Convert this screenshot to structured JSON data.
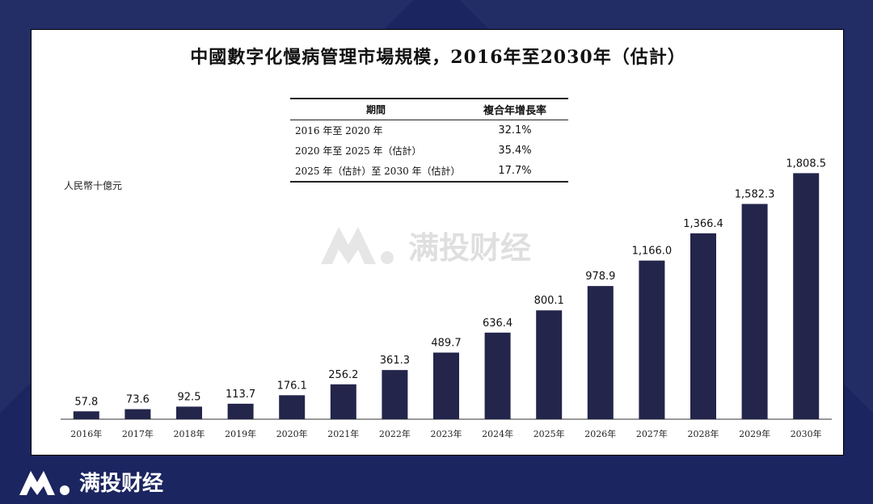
{
  "brand": {
    "name": "满投财经",
    "watermark": "满投财经"
  },
  "chart_data": {
    "type": "bar",
    "title": "中國數字化慢病管理市場規模，2016年至2030年（估計）",
    "ylabel": "人民幣十億元",
    "xlabel": "",
    "ylim": [
      0,
      1900
    ],
    "categories": [
      "2016年",
      "2017年",
      "2018年",
      "2019年",
      "2020年",
      "2021年",
      "2022年",
      "2023年",
      "2024年",
      "2025年",
      "2026年",
      "2027年",
      "2028年",
      "2029年",
      "2030年"
    ],
    "values": [
      57.8,
      73.6,
      92.5,
      113.7,
      176.1,
      256.2,
      361.3,
      489.7,
      636.4,
      800.1,
      978.9,
      1166.0,
      1366.4,
      1582.3,
      1808.5
    ],
    "value_labels": [
      "57.8",
      "73.6",
      "92.5",
      "113.7",
      "176.1",
      "256.2",
      "361.3",
      "489.7",
      "636.4",
      "800.1",
      "978.9",
      "1,166.0",
      "1,366.4",
      "1,582.3",
      "1,808.5"
    ],
    "bar_color": "#23254b",
    "cagr_table": {
      "headers": [
        "期間",
        "複合年增長率"
      ],
      "rows": [
        [
          "2016 年至 2020 年",
          "32.1%"
        ],
        [
          "2020 年至 2025 年（估計）",
          "35.4%"
        ],
        [
          "2025 年（估計）至 2030 年（估計）",
          "17.7%"
        ]
      ]
    }
  }
}
